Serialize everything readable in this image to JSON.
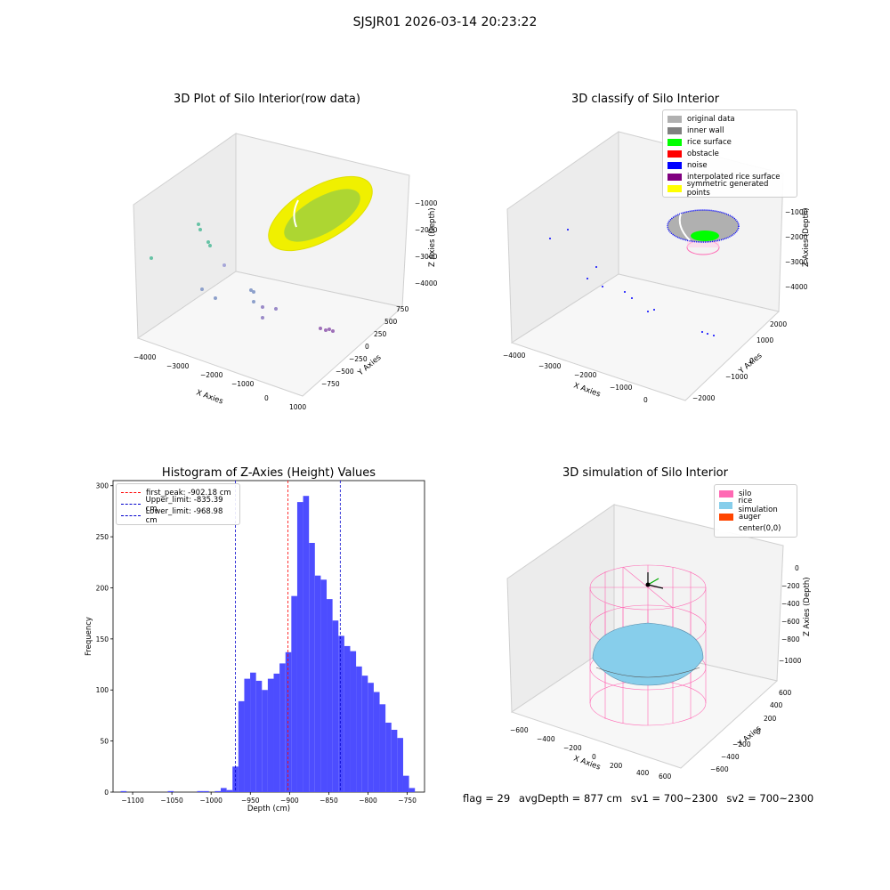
{
  "figure": {
    "suptitle": "SJSJR01 2026-03-14 20:23:22"
  },
  "chart_data": [
    {
      "id": "raw",
      "type": "scatter3d",
      "title": "3D Plot of Silo Interior(row data)",
      "xlabel": "X Axies",
      "ylabel": "Y Axies",
      "zlabel": "Z Axies (Depth)",
      "xticks": [
        "−4000",
        "−3000",
        "−2000",
        "−1000",
        "0",
        "1000"
      ],
      "yticks": [
        "−750",
        "−500",
        "−250",
        "0",
        "250",
        "500",
        "750"
      ],
      "zticks": [
        "−1000",
        "−2000",
        "−3000",
        "−4000"
      ]
    },
    {
      "id": "classify",
      "type": "scatter3d",
      "title": "3D classify of Silo Interior",
      "xlabel": "X Axies",
      "ylabel": "Y Axies",
      "zlabel": "Z Axies (Depth)",
      "xticks": [
        "−4000",
        "−3000",
        "−2000",
        "−1000",
        "0"
      ],
      "yticks": [
        "−2000",
        "−1000",
        "0",
        "1000",
        "2000"
      ],
      "zticks": [
        "−1000",
        "−2000",
        "−3000",
        "−4000"
      ],
      "legend": [
        {
          "label": "original data",
          "color": "#b0b0b0"
        },
        {
          "label": "inner wall",
          "color": "#808080"
        },
        {
          "label": "rice surface",
          "color": "#00ff00"
        },
        {
          "label": "obstacle",
          "color": "#ff0000"
        },
        {
          "label": "noise",
          "color": "#0000ff"
        },
        {
          "label": "interpolated rice surface",
          "color": "#800080"
        },
        {
          "label": "symmetric generated points",
          "color": "#ffff00"
        }
      ]
    },
    {
      "id": "histogram",
      "type": "bar",
      "title": "Histogram of Z-Axies (Height) Values",
      "xlabel": "Depth (cm)",
      "ylabel": "Frequency",
      "xlim": [
        -1125,
        -728
      ],
      "ylim": [
        0,
        305
      ],
      "xticks": [
        -1100,
        -1050,
        -1000,
        -950,
        -900,
        -850,
        -800,
        -750
      ],
      "yticks": [
        0,
        50,
        100,
        150,
        200,
        250,
        300
      ],
      "bin_width": 7.5,
      "bar_color": "#4d4dff",
      "bins": [
        [
          -1111.5,
          1
        ],
        [
          -1051.5,
          1
        ],
        [
          -1014,
          1
        ],
        [
          -1006.5,
          1
        ],
        [
          -991.5,
          1
        ],
        [
          -984,
          4
        ],
        [
          -976.5,
          2
        ],
        [
          -969,
          25
        ],
        [
          -961.5,
          89
        ],
        [
          -954,
          111
        ],
        [
          -946.5,
          117
        ],
        [
          -939,
          109
        ],
        [
          -931.5,
          100
        ],
        [
          -924,
          111
        ],
        [
          -916.5,
          116
        ],
        [
          -909,
          126
        ],
        [
          -901.5,
          137
        ],
        [
          -894,
          192
        ],
        [
          -886.5,
          284
        ],
        [
          -879,
          290
        ],
        [
          -871.5,
          244
        ],
        [
          -864,
          212
        ],
        [
          -856.5,
          208
        ],
        [
          -849,
          189
        ],
        [
          -841.5,
          168
        ],
        [
          -834,
          153
        ],
        [
          -826.5,
          143
        ],
        [
          -819,
          138
        ],
        [
          -811.5,
          123
        ],
        [
          -804,
          114
        ],
        [
          -796.5,
          107
        ],
        [
          -789,
          98
        ],
        [
          -781.5,
          86
        ],
        [
          -774,
          68
        ],
        [
          -766.5,
          61
        ],
        [
          -759,
          53
        ],
        [
          -751.5,
          16
        ],
        [
          -744,
          4
        ]
      ],
      "vlines": [
        {
          "label": "first_peak: -902.18 cm",
          "x": -902.18,
          "color": "#ff0000"
        },
        {
          "label": "Upper_limit: -835.39 cm",
          "x": -835.39,
          "color": "#0000cc"
        },
        {
          "label": "Lower_limit: -968.98 cm",
          "x": -968.98,
          "color": "#0000cc"
        }
      ],
      "legend_position": "top-left"
    },
    {
      "id": "simulation",
      "type": "surface3d",
      "title": "3D simulation of Silo Interior",
      "xlabel": "X Axies",
      "ylabel": "Y Axies",
      "zlabel": "Z Axies (Depth)",
      "xticks": [
        "−600",
        "−400",
        "−200",
        "0",
        "200",
        "400",
        "600"
      ],
      "yticks": [
        "−600",
        "−400",
        "−200",
        "0",
        "200",
        "400",
        "600"
      ],
      "zticks": [
        "0",
        "−200",
        "−400",
        "−600",
        "−800",
        "−1000"
      ],
      "legend": [
        {
          "label": "silo",
          "color": "#ff69b4"
        },
        {
          "label": "rice simulation",
          "color": "#87ceeb"
        },
        {
          "label": "auger",
          "color": "#ff4500"
        },
        {
          "label": "center(0,0)",
          "color": "#ffffff"
        }
      ]
    }
  ],
  "footer": {
    "flag": "flag = 29",
    "avg_depth": "avgDepth = 877 cm",
    "sv1": "sv1 = 700~2300",
    "sv2": "sv2 = 700~2300"
  }
}
